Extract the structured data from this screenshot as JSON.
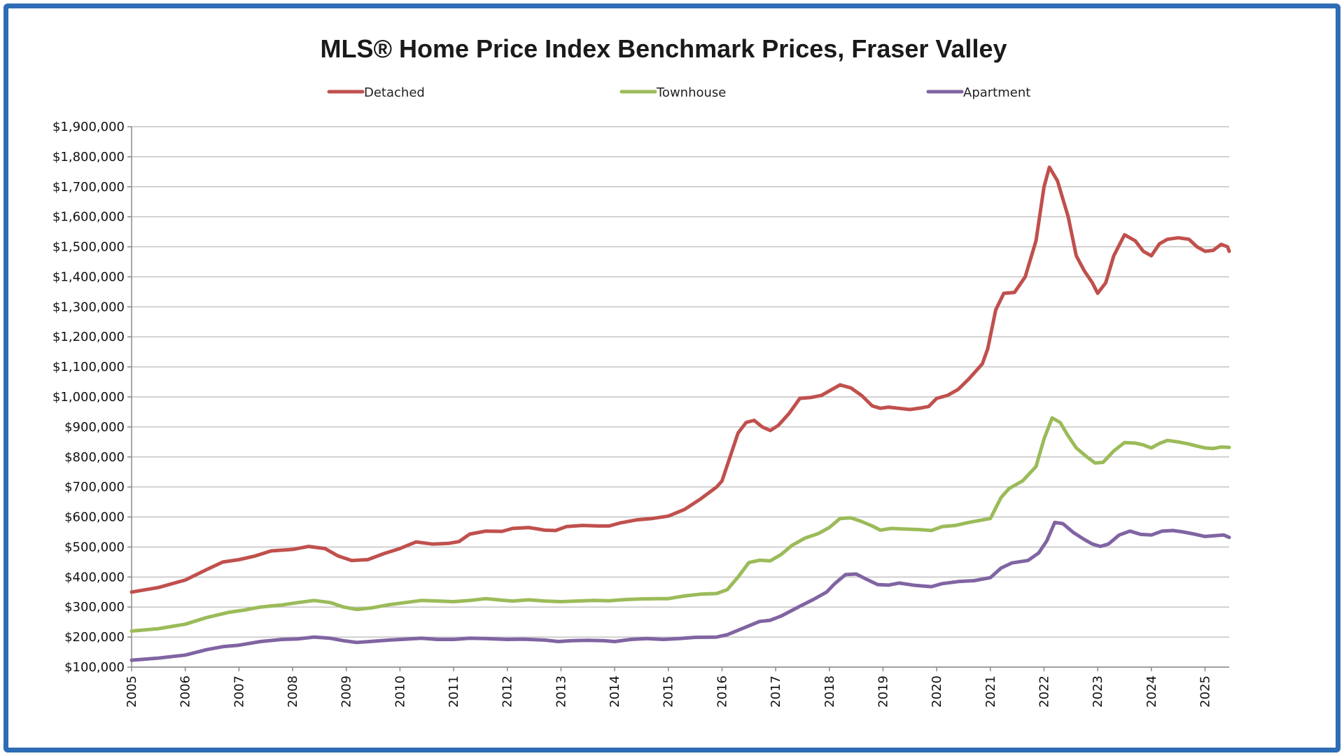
{
  "chart_data": {
    "type": "line",
    "title": "MLS® Home Price Index Benchmark Prices, Fraser Valley",
    "xlabel": "",
    "ylabel": "",
    "x_tick_labels": [
      "2005",
      "2006",
      "2007",
      "2008",
      "2009",
      "2010",
      "2011",
      "2012",
      "2013",
      "2014",
      "2015",
      "2016",
      "2017",
      "2018",
      "2019",
      "2020",
      "2021",
      "2022",
      "2023",
      "2024",
      "2025"
    ],
    "y_tick_labels": [
      "$100,000",
      "$200,000",
      "$300,000",
      "$400,000",
      "$500,000",
      "$600,000",
      "$700,000",
      "$800,000",
      "$900,000",
      "$1,000,000",
      "$1,100,000",
      "$1,200,000",
      "$1,300,000",
      "$1,400,000",
      "$1,500,000",
      "$1,600,000",
      "$1,700,000",
      "$1,800,000",
      "$1,900,000"
    ],
    "ylim": [
      100000,
      1900000
    ],
    "xlim": [
      2005.0,
      2025.45
    ],
    "grid": true,
    "legend_position": "top",
    "series": [
      {
        "name": "Detached",
        "color": "#c0504d",
        "points": [
          [
            2005.0,
            350000
          ],
          [
            2005.5,
            365000
          ],
          [
            2006.0,
            390000
          ],
          [
            2006.4,
            425000
          ],
          [
            2006.7,
            450000
          ],
          [
            2007.0,
            458000
          ],
          [
            2007.3,
            470000
          ],
          [
            2007.6,
            487000
          ],
          [
            2008.0,
            492000
          ],
          [
            2008.3,
            502000
          ],
          [
            2008.6,
            495000
          ],
          [
            2008.85,
            470000
          ],
          [
            2009.1,
            455000
          ],
          [
            2009.4,
            458000
          ],
          [
            2009.7,
            478000
          ],
          [
            2010.0,
            495000
          ],
          [
            2010.3,
            517000
          ],
          [
            2010.6,
            510000
          ],
          [
            2010.9,
            512000
          ],
          [
            2011.1,
            518000
          ],
          [
            2011.3,
            543000
          ],
          [
            2011.6,
            553000
          ],
          [
            2011.9,
            552000
          ],
          [
            2012.1,
            562000
          ],
          [
            2012.4,
            565000
          ],
          [
            2012.7,
            556000
          ],
          [
            2012.9,
            555000
          ],
          [
            2013.1,
            568000
          ],
          [
            2013.4,
            572000
          ],
          [
            2013.7,
            570000
          ],
          [
            2013.9,
            570000
          ],
          [
            2014.1,
            580000
          ],
          [
            2014.4,
            590000
          ],
          [
            2014.7,
            595000
          ],
          [
            2015.0,
            603000
          ],
          [
            2015.3,
            625000
          ],
          [
            2015.6,
            660000
          ],
          [
            2015.9,
            700000
          ],
          [
            2016.0,
            720000
          ],
          [
            2016.15,
            800000
          ],
          [
            2016.3,
            880000
          ],
          [
            2016.45,
            915000
          ],
          [
            2016.6,
            922000
          ],
          [
            2016.75,
            900000
          ],
          [
            2016.9,
            888000
          ],
          [
            2017.05,
            905000
          ],
          [
            2017.25,
            945000
          ],
          [
            2017.45,
            995000
          ],
          [
            2017.65,
            998000
          ],
          [
            2017.85,
            1005000
          ],
          [
            2018.0,
            1020000
          ],
          [
            2018.2,
            1040000
          ],
          [
            2018.4,
            1030000
          ],
          [
            2018.6,
            1005000
          ],
          [
            2018.8,
            970000
          ],
          [
            2018.95,
            962000
          ],
          [
            2019.1,
            966000
          ],
          [
            2019.3,
            962000
          ],
          [
            2019.5,
            958000
          ],
          [
            2019.7,
            963000
          ],
          [
            2019.85,
            968000
          ],
          [
            2020.0,
            995000
          ],
          [
            2020.2,
            1005000
          ],
          [
            2020.4,
            1025000
          ],
          [
            2020.6,
            1060000
          ],
          [
            2020.85,
            1110000
          ],
          [
            2020.95,
            1160000
          ],
          [
            2021.1,
            1290000
          ],
          [
            2021.25,
            1345000
          ],
          [
            2021.45,
            1348000
          ],
          [
            2021.65,
            1400000
          ],
          [
            2021.85,
            1520000
          ],
          [
            2022.0,
            1700000
          ],
          [
            2022.1,
            1765000
          ],
          [
            2022.25,
            1720000
          ],
          [
            2022.45,
            1600000
          ],
          [
            2022.6,
            1470000
          ],
          [
            2022.75,
            1420000
          ],
          [
            2022.9,
            1380000
          ],
          [
            2023.0,
            1345000
          ],
          [
            2023.15,
            1380000
          ],
          [
            2023.3,
            1470000
          ],
          [
            2023.5,
            1540000
          ],
          [
            2023.7,
            1520000
          ],
          [
            2023.85,
            1485000
          ],
          [
            2024.0,
            1470000
          ],
          [
            2024.15,
            1510000
          ],
          [
            2024.3,
            1525000
          ],
          [
            2024.5,
            1530000
          ],
          [
            2024.7,
            1525000
          ],
          [
            2024.85,
            1500000
          ],
          [
            2025.0,
            1485000
          ],
          [
            2025.15,
            1488000
          ],
          [
            2025.3,
            1508000
          ],
          [
            2025.42,
            1500000
          ],
          [
            2025.45,
            1485000
          ]
        ]
      },
      {
        "name": "Townhouse",
        "color": "#9bbb59",
        "points": [
          [
            2005.0,
            220000
          ],
          [
            2005.5,
            228000
          ],
          [
            2006.0,
            243000
          ],
          [
            2006.4,
            265000
          ],
          [
            2006.8,
            282000
          ],
          [
            2007.1,
            290000
          ],
          [
            2007.4,
            300000
          ],
          [
            2007.8,
            307000
          ],
          [
            2008.1,
            315000
          ],
          [
            2008.4,
            322000
          ],
          [
            2008.7,
            315000
          ],
          [
            2008.95,
            300000
          ],
          [
            2009.2,
            292000
          ],
          [
            2009.5,
            298000
          ],
          [
            2009.8,
            308000
          ],
          [
            2010.1,
            315000
          ],
          [
            2010.4,
            322000
          ],
          [
            2010.7,
            320000
          ],
          [
            2011.0,
            318000
          ],
          [
            2011.3,
            322000
          ],
          [
            2011.6,
            328000
          ],
          [
            2011.9,
            323000
          ],
          [
            2012.1,
            320000
          ],
          [
            2012.4,
            324000
          ],
          [
            2012.7,
            320000
          ],
          [
            2013.0,
            318000
          ],
          [
            2013.3,
            320000
          ],
          [
            2013.6,
            322000
          ],
          [
            2013.9,
            321000
          ],
          [
            2014.2,
            325000
          ],
          [
            2014.5,
            327000
          ],
          [
            2014.8,
            328000
          ],
          [
            2015.0,
            328000
          ],
          [
            2015.3,
            337000
          ],
          [
            2015.6,
            343000
          ],
          [
            2015.9,
            345000
          ],
          [
            2016.1,
            358000
          ],
          [
            2016.3,
            400000
          ],
          [
            2016.5,
            448000
          ],
          [
            2016.7,
            456000
          ],
          [
            2016.9,
            454000
          ],
          [
            2017.1,
            475000
          ],
          [
            2017.3,
            505000
          ],
          [
            2017.55,
            530000
          ],
          [
            2017.8,
            545000
          ],
          [
            2018.0,
            565000
          ],
          [
            2018.2,
            595000
          ],
          [
            2018.4,
            597000
          ],
          [
            2018.6,
            585000
          ],
          [
            2018.8,
            570000
          ],
          [
            2018.95,
            556000
          ],
          [
            2019.15,
            562000
          ],
          [
            2019.4,
            560000
          ],
          [
            2019.7,
            558000
          ],
          [
            2019.9,
            555000
          ],
          [
            2020.1,
            568000
          ],
          [
            2020.35,
            572000
          ],
          [
            2020.6,
            582000
          ],
          [
            2020.85,
            590000
          ],
          [
            2021.0,
            595000
          ],
          [
            2021.2,
            665000
          ],
          [
            2021.35,
            695000
          ],
          [
            2021.6,
            720000
          ],
          [
            2021.85,
            768000
          ],
          [
            2022.0,
            860000
          ],
          [
            2022.15,
            930000
          ],
          [
            2022.3,
            915000
          ],
          [
            2022.45,
            870000
          ],
          [
            2022.6,
            830000
          ],
          [
            2022.8,
            800000
          ],
          [
            2022.95,
            780000
          ],
          [
            2023.1,
            782000
          ],
          [
            2023.3,
            820000
          ],
          [
            2023.5,
            848000
          ],
          [
            2023.7,
            846000
          ],
          [
            2023.85,
            840000
          ],
          [
            2024.0,
            830000
          ],
          [
            2024.15,
            845000
          ],
          [
            2024.3,
            855000
          ],
          [
            2024.5,
            850000
          ],
          [
            2024.7,
            843000
          ],
          [
            2024.85,
            836000
          ],
          [
            2025.0,
            830000
          ],
          [
            2025.15,
            828000
          ],
          [
            2025.3,
            833000
          ],
          [
            2025.45,
            832000
          ]
        ]
      },
      {
        "name": "Apartment",
        "color": "#8064a2",
        "points": [
          [
            2005.0,
            123000
          ],
          [
            2005.5,
            130000
          ],
          [
            2006.0,
            140000
          ],
          [
            2006.4,
            158000
          ],
          [
            2006.7,
            168000
          ],
          [
            2007.0,
            173000
          ],
          [
            2007.4,
            185000
          ],
          [
            2007.8,
            192000
          ],
          [
            2008.1,
            194000
          ],
          [
            2008.4,
            200000
          ],
          [
            2008.7,
            196000
          ],
          [
            2008.95,
            188000
          ],
          [
            2009.2,
            182000
          ],
          [
            2009.5,
            186000
          ],
          [
            2009.8,
            190000
          ],
          [
            2010.1,
            193000
          ],
          [
            2010.4,
            196000
          ],
          [
            2010.7,
            192000
          ],
          [
            2011.0,
            192000
          ],
          [
            2011.3,
            196000
          ],
          [
            2011.6,
            195000
          ],
          [
            2012.0,
            192000
          ],
          [
            2012.3,
            193000
          ],
          [
            2012.7,
            190000
          ],
          [
            2012.95,
            185000
          ],
          [
            2013.2,
            188000
          ],
          [
            2013.5,
            189000
          ],
          [
            2013.8,
            188000
          ],
          [
            2014.0,
            185000
          ],
          [
            2014.3,
            192000
          ],
          [
            2014.6,
            195000
          ],
          [
            2014.9,
            192000
          ],
          [
            2015.2,
            195000
          ],
          [
            2015.5,
            199000
          ],
          [
            2015.9,
            200000
          ],
          [
            2016.1,
            208000
          ],
          [
            2016.4,
            230000
          ],
          [
            2016.7,
            252000
          ],
          [
            2016.9,
            256000
          ],
          [
            2017.1,
            270000
          ],
          [
            2017.4,
            298000
          ],
          [
            2017.7,
            325000
          ],
          [
            2017.95,
            350000
          ],
          [
            2018.1,
            378000
          ],
          [
            2018.3,
            408000
          ],
          [
            2018.5,
            410000
          ],
          [
            2018.7,
            392000
          ],
          [
            2018.9,
            375000
          ],
          [
            2019.1,
            373000
          ],
          [
            2019.3,
            380000
          ],
          [
            2019.6,
            372000
          ],
          [
            2019.9,
            368000
          ],
          [
            2020.1,
            378000
          ],
          [
            2020.4,
            385000
          ],
          [
            2020.7,
            388000
          ],
          [
            2021.0,
            398000
          ],
          [
            2021.2,
            430000
          ],
          [
            2021.4,
            447000
          ],
          [
            2021.7,
            455000
          ],
          [
            2021.9,
            480000
          ],
          [
            2022.05,
            520000
          ],
          [
            2022.2,
            582000
          ],
          [
            2022.35,
            578000
          ],
          [
            2022.55,
            548000
          ],
          [
            2022.75,
            525000
          ],
          [
            2022.9,
            510000
          ],
          [
            2023.05,
            502000
          ],
          [
            2023.2,
            510000
          ],
          [
            2023.4,
            540000
          ],
          [
            2023.6,
            553000
          ],
          [
            2023.8,
            542000
          ],
          [
            2024.0,
            540000
          ],
          [
            2024.2,
            553000
          ],
          [
            2024.4,
            555000
          ],
          [
            2024.6,
            550000
          ],
          [
            2024.8,
            543000
          ],
          [
            2025.0,
            535000
          ],
          [
            2025.2,
            538000
          ],
          [
            2025.35,
            540000
          ],
          [
            2025.45,
            532000
          ]
        ]
      }
    ]
  }
}
